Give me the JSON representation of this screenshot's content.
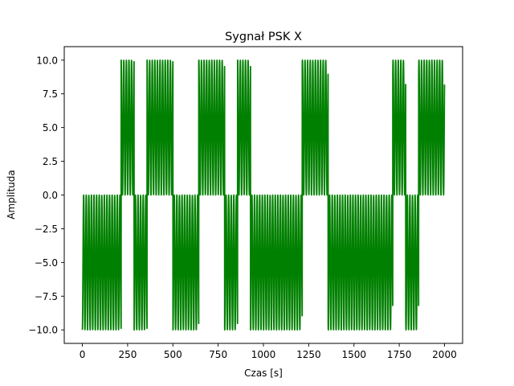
{
  "chart_data": {
    "type": "line",
    "title": "Sygnał PSK X",
    "xlabel": "Czas [s]",
    "ylabel": "Amplituda",
    "xlim": [
      -100,
      2100
    ],
    "ylim": [
      -11,
      11
    ],
    "xticks": [
      0,
      250,
      500,
      750,
      1000,
      1250,
      1500,
      1750,
      2000
    ],
    "yticks": [
      -10.0,
      -7.5,
      -5.0,
      -2.5,
      0.0,
      2.5,
      5.0,
      7.5,
      10.0
    ],
    "xtick_labels": [
      "0",
      "250",
      "500",
      "750",
      "1000",
      "1250",
      "1500",
      "1750",
      "2000"
    ],
    "ytick_labels": [
      "−10.0",
      "−7.5",
      "−5.0",
      "−2.5",
      "0.0",
      "2.5",
      "5.0",
      "7.5",
      "10.0"
    ],
    "grid": false,
    "series": [
      {
        "color": "#008000",
        "carrier_period": 14.3,
        "amplitude": 5,
        "offset_magnitude": 5,
        "bit_duration": 71.43,
        "bits": [
          0,
          0,
          0,
          1,
          0,
          1,
          1,
          0,
          0,
          1,
          1,
          0,
          1,
          0,
          0,
          0,
          0,
          1,
          1,
          0,
          0,
          0,
          0,
          0,
          1,
          0,
          1,
          1
        ],
        "x_start": 0,
        "x_end": 2000
      }
    ]
  }
}
